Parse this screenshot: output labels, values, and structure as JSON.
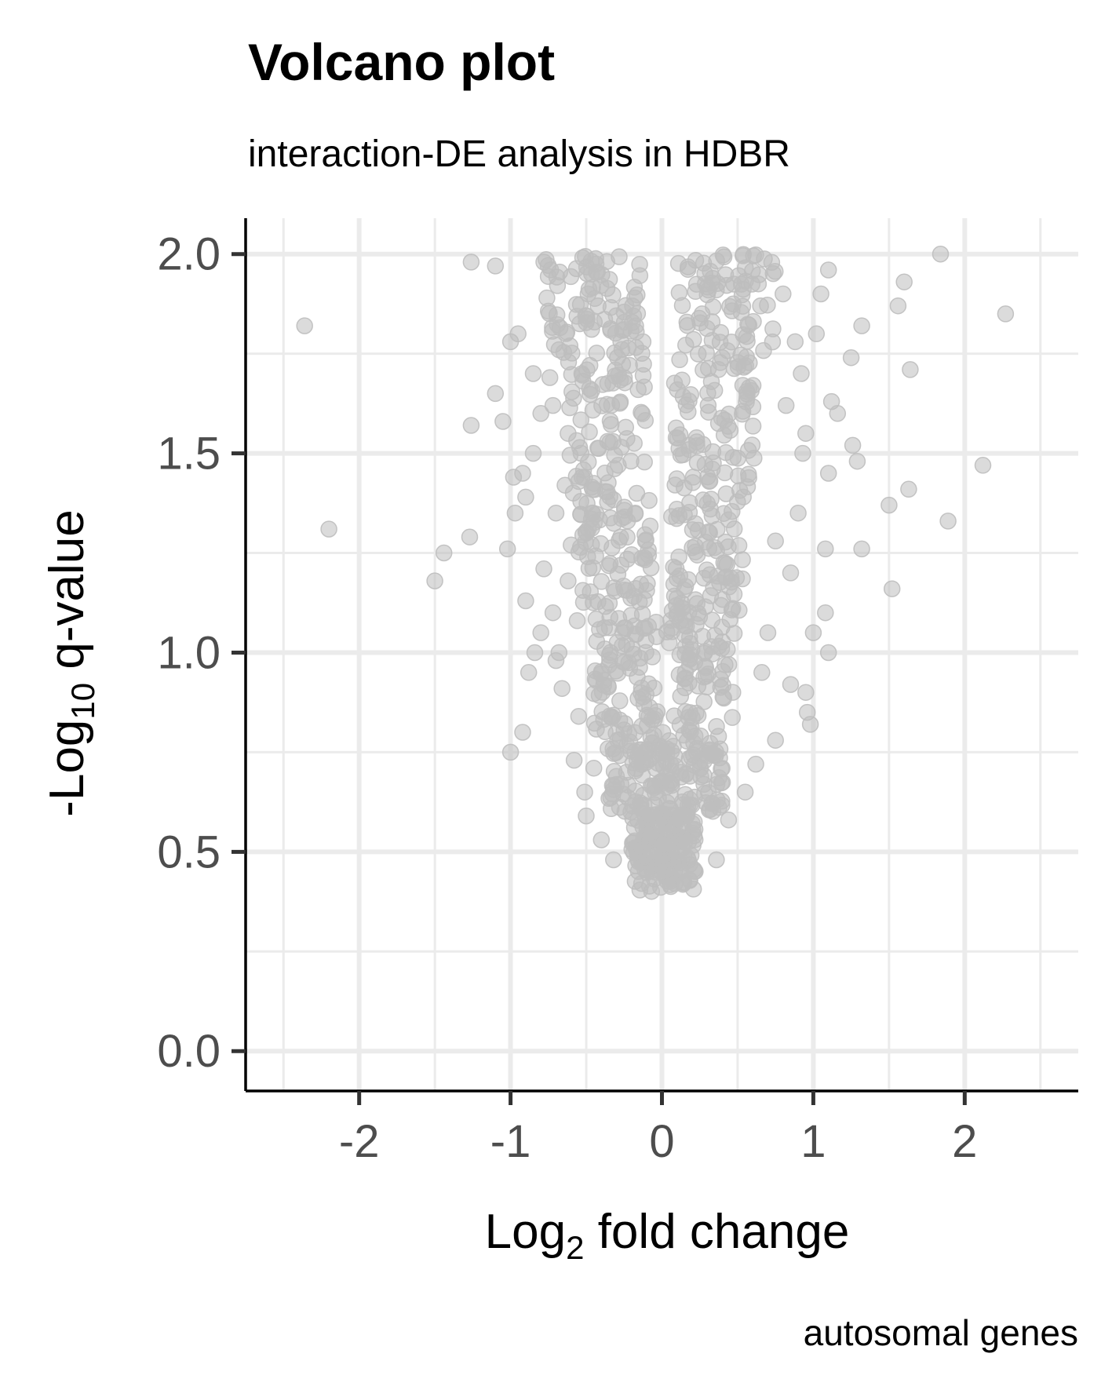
{
  "chart_data": {
    "type": "scatter",
    "title": "Volcano plot",
    "subtitle": "interaction-DE analysis in HDBR",
    "xlabel": {
      "main": "Log",
      "sub": "2",
      "rest": " fold change"
    },
    "ylabel": {
      "main": "-Log",
      "sub": "10",
      "rest": " q-value"
    },
    "caption": "autosomal genes",
    "xlim": [
      -2.75,
      2.75
    ],
    "ylim": [
      -0.1,
      2.09
    ],
    "x_ticks": [
      -2,
      -1,
      0,
      1,
      2
    ],
    "x_tick_labels": [
      "-2",
      "-1",
      "0",
      "1",
      "2"
    ],
    "y_ticks": [
      0.0,
      0.5,
      1.0,
      1.5,
      2.0
    ],
    "y_tick_labels": [
      "0.0",
      "0.5",
      "1.0",
      "1.5",
      "2.0"
    ],
    "grid": true,
    "point_color": "#bebebe",
    "point_opacity": 0.55,
    "series": [
      {
        "points": [
          [
            -2.36,
            1.82
          ],
          [
            -2.2,
            1.31
          ],
          [
            -1.5,
            1.18
          ],
          [
            -1.44,
            1.25
          ],
          [
            -1.27,
            1.29
          ],
          [
            -1.26,
            1.98
          ],
          [
            -1.26,
            1.57
          ],
          [
            -1.1,
            1.97
          ],
          [
            -1.1,
            1.65
          ],
          [
            -1.05,
            1.58
          ],
          [
            -1.0,
            1.78
          ],
          [
            -1.02,
            1.26
          ],
          [
            -0.98,
            1.44
          ],
          [
            -0.97,
            1.35
          ],
          [
            -0.95,
            1.8
          ],
          [
            -0.92,
            1.45
          ],
          [
            -0.9,
            1.39
          ],
          [
            -0.9,
            1.13
          ],
          [
            -0.88,
            0.95
          ],
          [
            -0.85,
            1.7
          ],
          [
            -0.84,
            1.0
          ],
          [
            -0.8,
            1.05
          ],
          [
            -0.78,
            1.21
          ],
          [
            -0.74,
            1.69
          ],
          [
            -0.72,
            1.1
          ],
          [
            -0.7,
            1.35
          ],
          [
            -0.68,
            1.76
          ],
          [
            -0.68,
            1.0
          ],
          [
            -0.66,
            0.91
          ],
          [
            -0.62,
            1.55
          ],
          [
            -0.6,
            1.27
          ],
          [
            -0.58,
            0.73
          ],
          [
            -0.55,
            0.84
          ],
          [
            -0.51,
            0.65
          ],
          [
            -0.5,
            0.59
          ],
          [
            -0.45,
            0.71
          ],
          [
            -0.4,
            0.53
          ],
          [
            -0.32,
            0.48
          ],
          [
            -0.78,
            1.98
          ],
          [
            -0.76,
            1.89
          ],
          [
            -0.72,
            1.62
          ],
          [
            -0.64,
            1.42
          ],
          [
            -0.8,
            1.6
          ],
          [
            -1.0,
            0.75
          ],
          [
            -0.92,
            0.8
          ],
          [
            -0.85,
            1.5
          ],
          [
            -0.62,
            1.18
          ],
          [
            -0.56,
            1.08
          ],
          [
            -0.7,
            0.98
          ],
          [
            1.84,
            2.0
          ],
          [
            2.27,
            1.85
          ],
          [
            1.6,
            1.93
          ],
          [
            1.56,
            1.87
          ],
          [
            1.32,
            1.82
          ],
          [
            1.64,
            1.71
          ],
          [
            1.25,
            1.74
          ],
          [
            2.12,
            1.47
          ],
          [
            1.63,
            1.41
          ],
          [
            1.5,
            1.37
          ],
          [
            1.89,
            1.33
          ],
          [
            1.32,
            1.26
          ],
          [
            1.52,
            1.16
          ],
          [
            1.26,
            1.52
          ],
          [
            1.29,
            1.48
          ],
          [
            1.1,
            1.45
          ],
          [
            1.12,
            1.63
          ],
          [
            1.16,
            1.6
          ],
          [
            1.05,
            1.9
          ],
          [
            1.1,
            1.96
          ],
          [
            1.02,
            1.8
          ],
          [
            0.95,
            1.55
          ],
          [
            0.93,
            1.5
          ],
          [
            1.08,
            1.1
          ],
          [
            1.1,
            1.0
          ],
          [
            1.0,
            1.05
          ],
          [
            0.95,
            0.9
          ],
          [
            0.96,
            0.85
          ],
          [
            0.98,
            0.82
          ],
          [
            0.75,
            0.78
          ],
          [
            0.62,
            0.72
          ],
          [
            0.55,
            0.65
          ],
          [
            0.44,
            0.58
          ],
          [
            0.36,
            0.48
          ],
          [
            0.85,
            1.2
          ],
          [
            0.9,
            1.35
          ],
          [
            0.82,
            1.62
          ],
          [
            0.88,
            1.78
          ],
          [
            0.8,
            1.9
          ],
          [
            0.92,
            1.7
          ],
          [
            0.75,
            1.28
          ],
          [
            0.7,
            1.05
          ],
          [
            0.66,
            0.95
          ],
          [
            0.85,
            0.92
          ],
          [
            1.08,
            1.26
          ]
        ],
        "cloud_bands": [
          {
            "y": [
              1.75,
              2.0
            ],
            "xl_out": -0.78,
            "xl_in": -0.12,
            "xr_in": 0.1,
            "xr_out": 0.75
          },
          {
            "y": [
              1.4,
              1.75
            ],
            "xl_out": -0.62,
            "xl_in": -0.1,
            "xr_in": 0.08,
            "xr_out": 0.62
          },
          {
            "y": [
              1.1,
              1.4
            ],
            "xl_out": -0.55,
            "xl_in": -0.07,
            "xr_in": 0.06,
            "xr_out": 0.55
          },
          {
            "y": [
              0.8,
              1.1
            ],
            "xl_out": -0.45,
            "xl_in": -0.03,
            "xr_in": 0.03,
            "xr_out": 0.48
          },
          {
            "y": [
              0.6,
              0.8
            ],
            "xl_out": -0.36,
            "xl_in": 0.0,
            "xr_in": 0.0,
            "xr_out": 0.4
          },
          {
            "y": [
              0.4,
              0.6
            ],
            "xl_out": -0.2,
            "xl_in": 0.0,
            "xr_in": 0.0,
            "xr_out": 0.22
          }
        ]
      }
    ]
  }
}
